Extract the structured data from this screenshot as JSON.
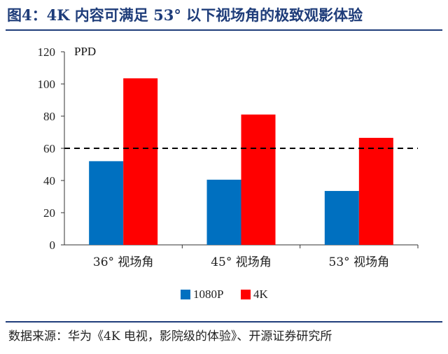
{
  "figure": {
    "title": "图4：4K 内容可满足 53° 以下视场角的极致观影体验",
    "source": "数据来源：华为《4K 电视，影院级的体验》、开源证券研究所"
  },
  "colors": {
    "title": "#1f3d7a",
    "series_1080p": "#0070c0",
    "series_4k": "#ff0000",
    "reference_line": "#000000"
  },
  "chart_data": {
    "type": "bar",
    "categories": [
      "36°  视场角",
      "45°  视场角",
      "53°  视场角"
    ],
    "series": [
      {
        "name": "1080P",
        "values": [
          52,
          40.5,
          33.5
        ]
      },
      {
        "name": "4K",
        "values": [
          103.5,
          81,
          66.5
        ]
      }
    ],
    "ylabel": "PPD",
    "ylim": [
      0,
      120
    ],
    "yticks": [
      0,
      20,
      40,
      60,
      80,
      100,
      120
    ],
    "reference_line": {
      "value": 60,
      "style": "dashed"
    },
    "grid": false,
    "legend": "bottom-center"
  }
}
